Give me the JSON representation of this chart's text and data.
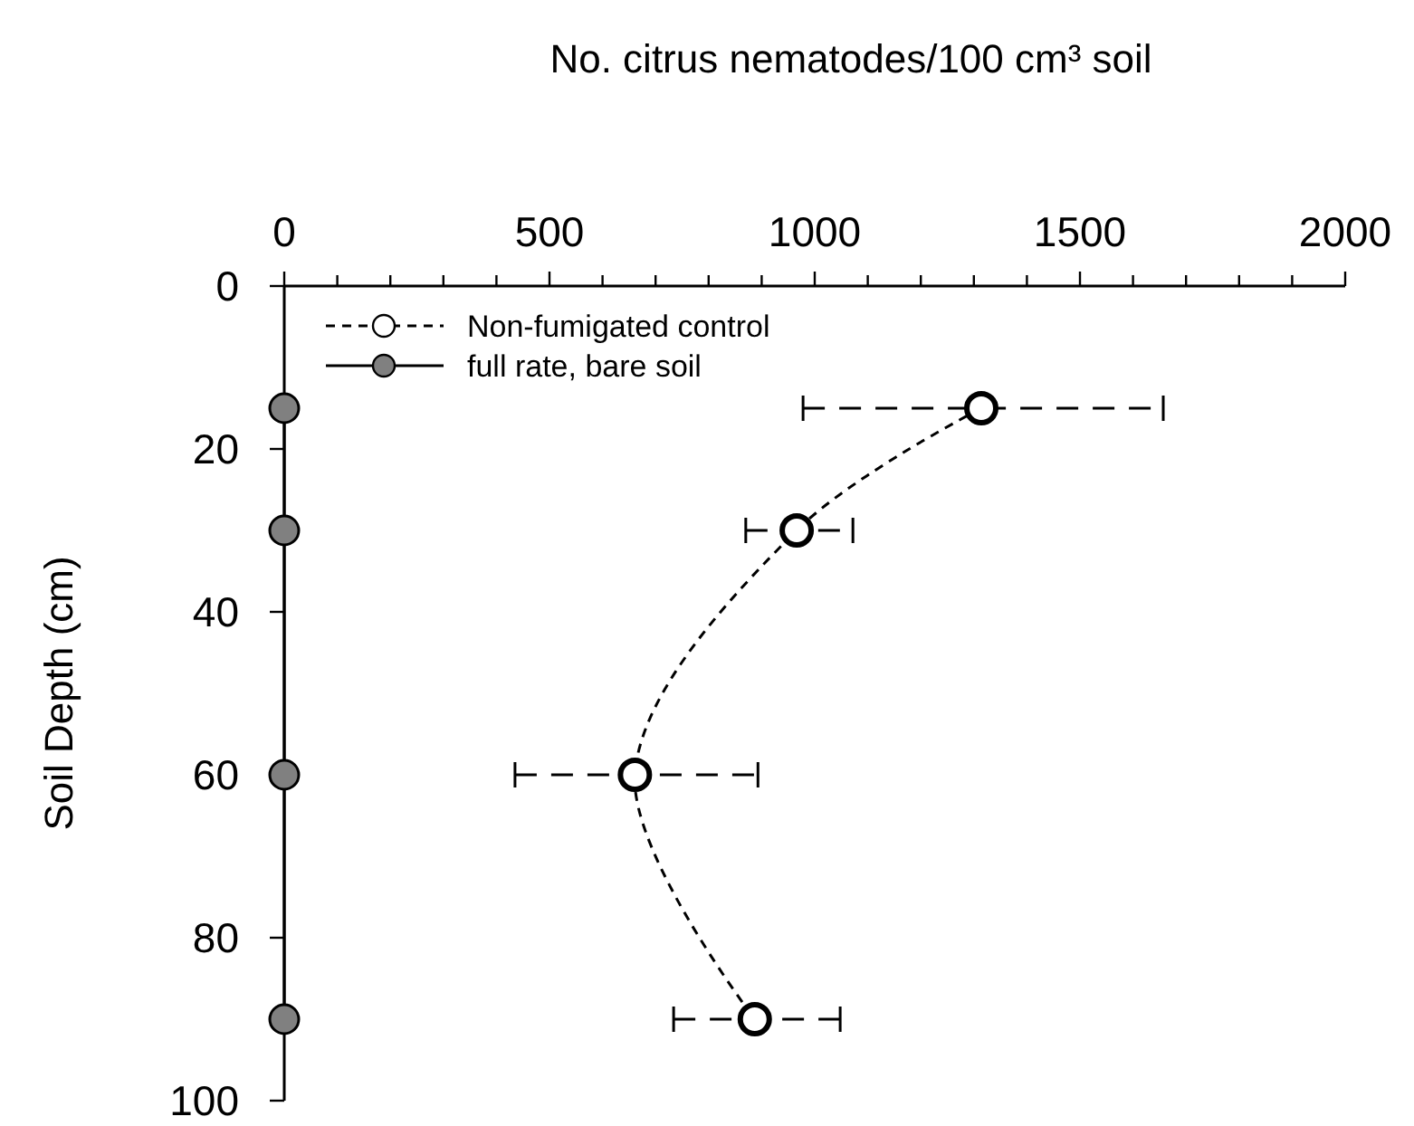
{
  "chart_data": {
    "type": "line",
    "xlabel": "No. citrus nematodes/100 cm³ soil",
    "ylabel": "Soil Depth (cm)",
    "xlim": [
      0,
      2000
    ],
    "xticks": [
      0,
      {
        "value": 100,
        "label": null
      },
      {
        "value": 200,
        "label": null
      },
      {
        "value": 300,
        "label": null
      },
      {
        "value": 400,
        "label": null
      },
      500,
      {
        "value": 600,
        "label": null
      },
      {
        "value": 700,
        "label": null
      },
      {
        "value": 800,
        "label": null
      },
      {
        "value": 900,
        "label": null
      },
      1000,
      {
        "value": 1100,
        "label": null
      },
      {
        "value": 1200,
        "label": null
      },
      {
        "value": 1300,
        "label": null
      },
      {
        "value": 1400,
        "label": null
      },
      1500,
      {
        "value": 1600,
        "label": null
      },
      {
        "value": 1700,
        "label": null
      },
      {
        "value": 1800,
        "label": null
      },
      {
        "value": 1900,
        "label": null
      },
      2000
    ],
    "ylim": [
      100,
      0
    ],
    "yticks": [
      0,
      20,
      40,
      60,
      80,
      100
    ],
    "legend": "top left",
    "marker": "circle",
    "grid": false,
    "series": [
      {
        "name": "Non-fumigated control",
        "color": "#ffffff",
        "line_style": "dashed",
        "x": [
          1314,
          966,
          661,
          887
        ],
        "values": [
          15,
          30,
          60,
          90
        ],
        "xerrors": [
          [
            978,
            1657
          ],
          [
            870,
            1072
          ],
          [
            435,
            893
          ],
          [
            734,
            1048
          ]
        ]
      },
      {
        "name": "full rate, bare soil",
        "color": "#808080",
        "line_style": "solid",
        "x": [
          0,
          0,
          0,
          0
        ],
        "values": [
          15,
          30,
          60,
          90
        ]
      }
    ]
  }
}
